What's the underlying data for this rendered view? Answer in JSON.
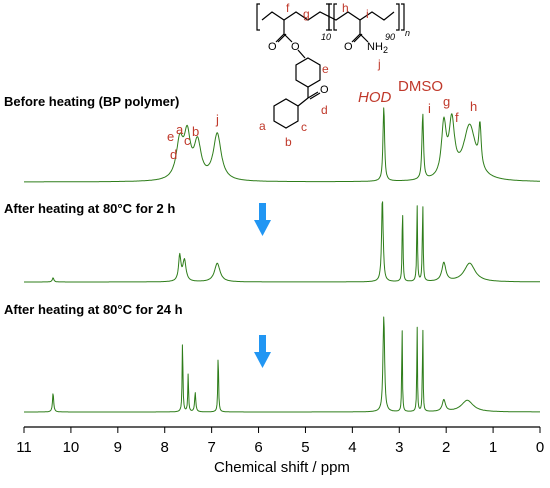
{
  "chart_data": {
    "type": "line",
    "title": "",
    "xlabel": "Chemical shift / ppm",
    "ylabel": "",
    "xlim": [
      11,
      0
    ],
    "x_ticks": [
      11,
      10,
      9,
      8,
      7,
      6,
      5,
      4,
      3,
      2,
      1,
      0
    ],
    "x_reversed": true,
    "series": [
      {
        "name": "Before heating (BP polymer)",
        "peak_labels": [
          "e",
          "d",
          "a",
          "c",
          "b",
          "j",
          "i",
          "g",
          "f",
          "h"
        ],
        "peaks": [
          {
            "x": 7.68,
            "h": 0.5
          },
          {
            "x": 7.52,
            "h": 0.55
          },
          {
            "x": 7.3,
            "h": 0.48
          },
          {
            "x": 6.88,
            "h": 0.62
          },
          {
            "x": 3.33,
            "h": 1.0
          },
          {
            "x": 2.5,
            "h": 0.88
          },
          {
            "x": 2.05,
            "h": 0.7
          },
          {
            "x": 1.88,
            "h": 0.72
          },
          {
            "x": 1.5,
            "h": 0.73
          },
          {
            "x": 1.28,
            "h": 0.55
          }
        ]
      },
      {
        "name": "After heating at 80°C for 2 h",
        "peaks": [
          {
            "x": 10.38,
            "h": 0.05
          },
          {
            "x": 7.68,
            "h": 0.3
          },
          {
            "x": 7.58,
            "h": 0.25
          },
          {
            "x": 6.88,
            "h": 0.22
          },
          {
            "x": 3.36,
            "h": 1.0
          },
          {
            "x": 2.93,
            "h": 0.9
          },
          {
            "x": 2.62,
            "h": 0.92
          },
          {
            "x": 2.5,
            "h": 0.95
          },
          {
            "x": 2.05,
            "h": 0.22
          },
          {
            "x": 1.5,
            "h": 0.22
          }
        ]
      },
      {
        "name": "After heating at 80°C for 24 h",
        "peaks": [
          {
            "x": 10.38,
            "h": 0.2
          },
          {
            "x": 7.62,
            "h": 0.75
          },
          {
            "x": 7.5,
            "h": 0.4
          },
          {
            "x": 7.35,
            "h": 0.2
          },
          {
            "x": 6.86,
            "h": 0.62
          },
          {
            "x": 3.33,
            "h": 1.0
          },
          {
            "x": 2.94,
            "h": 0.95
          },
          {
            "x": 2.62,
            "h": 0.92
          },
          {
            "x": 2.5,
            "h": 0.95
          },
          {
            "x": 2.05,
            "h": 0.12
          },
          {
            "x": 1.55,
            "h": 0.12
          }
        ]
      }
    ],
    "annotations": [
      "HOD",
      "DMSO"
    ],
    "grid": false
  },
  "labels": {
    "peak_a": "a",
    "peak_b": "b",
    "peak_c": "c",
    "peak_d": "d",
    "peak_e": "e",
    "peak_f": "f",
    "peak_g": "g",
    "peak_h": "h",
    "peak_i": "i",
    "peak_j": "j",
    "hod": "HOD",
    "dmso": "DMSO"
  },
  "structure": {
    "subscript_10": "10",
    "subscript_90": "90",
    "subscript_n": "n",
    "label_f": "f",
    "label_g": "g",
    "label_h": "h",
    "label_i": "i",
    "label_j": "j",
    "label_e": "e",
    "label_d": "d",
    "label_a": "a",
    "label_b": "b",
    "label_c": "c",
    "atom_o1": "O",
    "atom_o2": "O",
    "atom_o3": "O",
    "atom_o4": "O",
    "amide": "NH",
    "amide_sub": "2"
  },
  "colors": {
    "trace": "#2e7d1a",
    "peak_label": "#c0392b",
    "arrow": "#2196f3"
  }
}
